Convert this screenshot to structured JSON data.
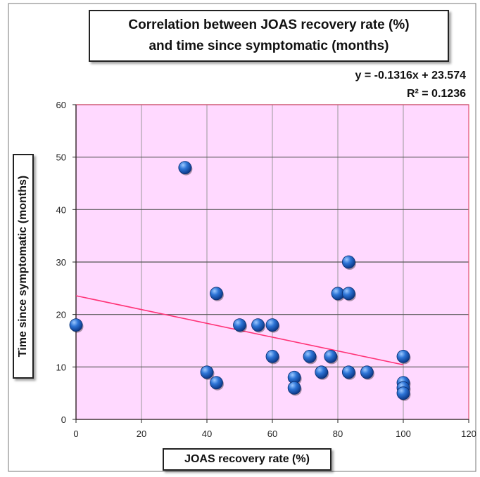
{
  "chart_data": {
    "type": "scatter",
    "title_lines": [
      "Correlation between JOAS recovery rate (%)",
      "and time since symptomatic (months)"
    ],
    "xlabel": "JOAS recovery rate (%)",
    "ylabel": "Time since symptomatic (months)",
    "xlim": [
      0,
      120
    ],
    "ylim": [
      0,
      60
    ],
    "x_ticks": [
      0,
      20,
      40,
      60,
      80,
      100,
      120
    ],
    "y_ticks": [
      0,
      10,
      20,
      30,
      40,
      50,
      60
    ],
    "grid": true,
    "plot_background": "#ffd9ff",
    "point_color": "#1f5fbf",
    "trendline_color": "#ff3377",
    "border_color": "#e05070",
    "trendline": {
      "slope": -0.1316,
      "intercept": 23.574,
      "x_range": [
        0,
        100
      ],
      "equation": "y = -0.1316x + 23.574",
      "r_squared": "R² = 0.1236"
    },
    "points": [
      {
        "x": 0,
        "y": 18
      },
      {
        "x": 33.3,
        "y": 48
      },
      {
        "x": 40,
        "y": 9
      },
      {
        "x": 42.9,
        "y": 24
      },
      {
        "x": 42.9,
        "y": 7
      },
      {
        "x": 50,
        "y": 18
      },
      {
        "x": 55.6,
        "y": 18
      },
      {
        "x": 60,
        "y": 18
      },
      {
        "x": 60,
        "y": 12
      },
      {
        "x": 66.7,
        "y": 8
      },
      {
        "x": 66.7,
        "y": 6
      },
      {
        "x": 71.4,
        "y": 12
      },
      {
        "x": 75,
        "y": 9
      },
      {
        "x": 77.8,
        "y": 12
      },
      {
        "x": 80,
        "y": 24
      },
      {
        "x": 83.3,
        "y": 30
      },
      {
        "x": 83.3,
        "y": 24
      },
      {
        "x": 83.3,
        "y": 9
      },
      {
        "x": 88.9,
        "y": 9
      },
      {
        "x": 100,
        "y": 12
      },
      {
        "x": 100,
        "y": 7
      },
      {
        "x": 100,
        "y": 6
      },
      {
        "x": 100,
        "y": 5
      }
    ]
  }
}
